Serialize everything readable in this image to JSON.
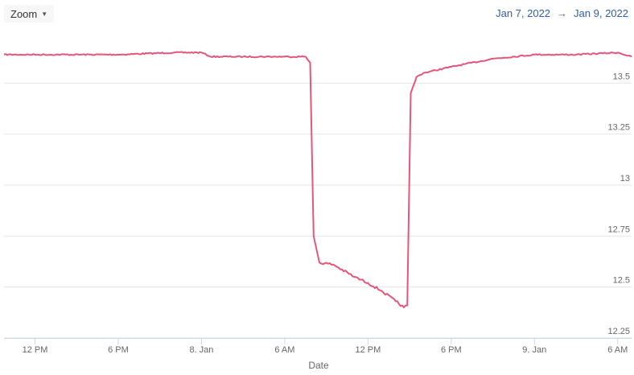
{
  "toolbar": {
    "zoom_label": "Zoom",
    "caret_icon": "caret-down-icon"
  },
  "range": {
    "from": "Jan 7, 2022",
    "separator": "→",
    "to": "Jan 9, 2022"
  },
  "colors": {
    "series": "#e4577a",
    "grid": "#e6e6e6",
    "range_text": "#335cad"
  },
  "chart_data": {
    "type": "line",
    "title": "",
    "xlabel": "Date",
    "ylabel": "",
    "x_range": [
      "2022-01-07T09:46",
      "2022-01-09T07:00"
    ],
    "ylim": [
      12.25,
      13.75
    ],
    "y_ticks": [
      12.25,
      12.5,
      12.75,
      13,
      13.25,
      13.5
    ],
    "y_tick_labels": [
      "12.25",
      "12.5",
      "12.75",
      "13",
      "13.25",
      "13.5"
    ],
    "x_ticks": [
      {
        "t": "2022-01-07T12:00",
        "label": "12 PM"
      },
      {
        "t": "2022-01-07T18:00",
        "label": "6 PM"
      },
      {
        "t": "2022-01-08T00:00",
        "label": "8. Jan"
      },
      {
        "t": "2022-01-08T06:00",
        "label": "6 AM"
      },
      {
        "t": "2022-01-08T12:00",
        "label": "12 PM"
      },
      {
        "t": "2022-01-08T18:00",
        "label": "6 PM"
      },
      {
        "t": "2022-01-09T00:00",
        "label": "9. Jan"
      },
      {
        "t": "2022-01-09T06:00",
        "label": "6 AM"
      }
    ],
    "grid": true,
    "legend": "none",
    "series": [
      {
        "points": [
          [
            "2022-01-07T09:46",
            13.64
          ],
          [
            "2022-01-07T12:00",
            13.64
          ],
          [
            "2022-01-07T18:00",
            13.64
          ],
          [
            "2022-01-07T22:00",
            13.65
          ],
          [
            "2022-01-08T00:00",
            13.65
          ],
          [
            "2022-01-08T00:40",
            13.63
          ],
          [
            "2022-01-08T03:00",
            13.63
          ],
          [
            "2022-01-08T06:00",
            13.63
          ],
          [
            "2022-01-08T07:30",
            13.63
          ],
          [
            "2022-01-08T07:50",
            13.6
          ],
          [
            "2022-01-08T08:05",
            12.75
          ],
          [
            "2022-01-08T08:30",
            12.62
          ],
          [
            "2022-01-08T09:30",
            12.61
          ],
          [
            "2022-01-08T11:00",
            12.55
          ],
          [
            "2022-01-08T12:00",
            12.52
          ],
          [
            "2022-01-08T13:00",
            12.48
          ],
          [
            "2022-01-08T14:00",
            12.43
          ],
          [
            "2022-01-08T14:35",
            12.4
          ],
          [
            "2022-01-08T14:50",
            12.41
          ],
          [
            "2022-01-08T15:05",
            13.45
          ],
          [
            "2022-01-08T15:30",
            13.53
          ],
          [
            "2022-01-08T16:00",
            13.55
          ],
          [
            "2022-01-08T18:00",
            13.58
          ],
          [
            "2022-01-08T21:00",
            13.62
          ],
          [
            "2022-01-09T00:00",
            13.64
          ],
          [
            "2022-01-09T03:00",
            13.64
          ],
          [
            "2022-01-09T06:00",
            13.65
          ],
          [
            "2022-01-09T07:00",
            13.63
          ]
        ]
      }
    ]
  }
}
